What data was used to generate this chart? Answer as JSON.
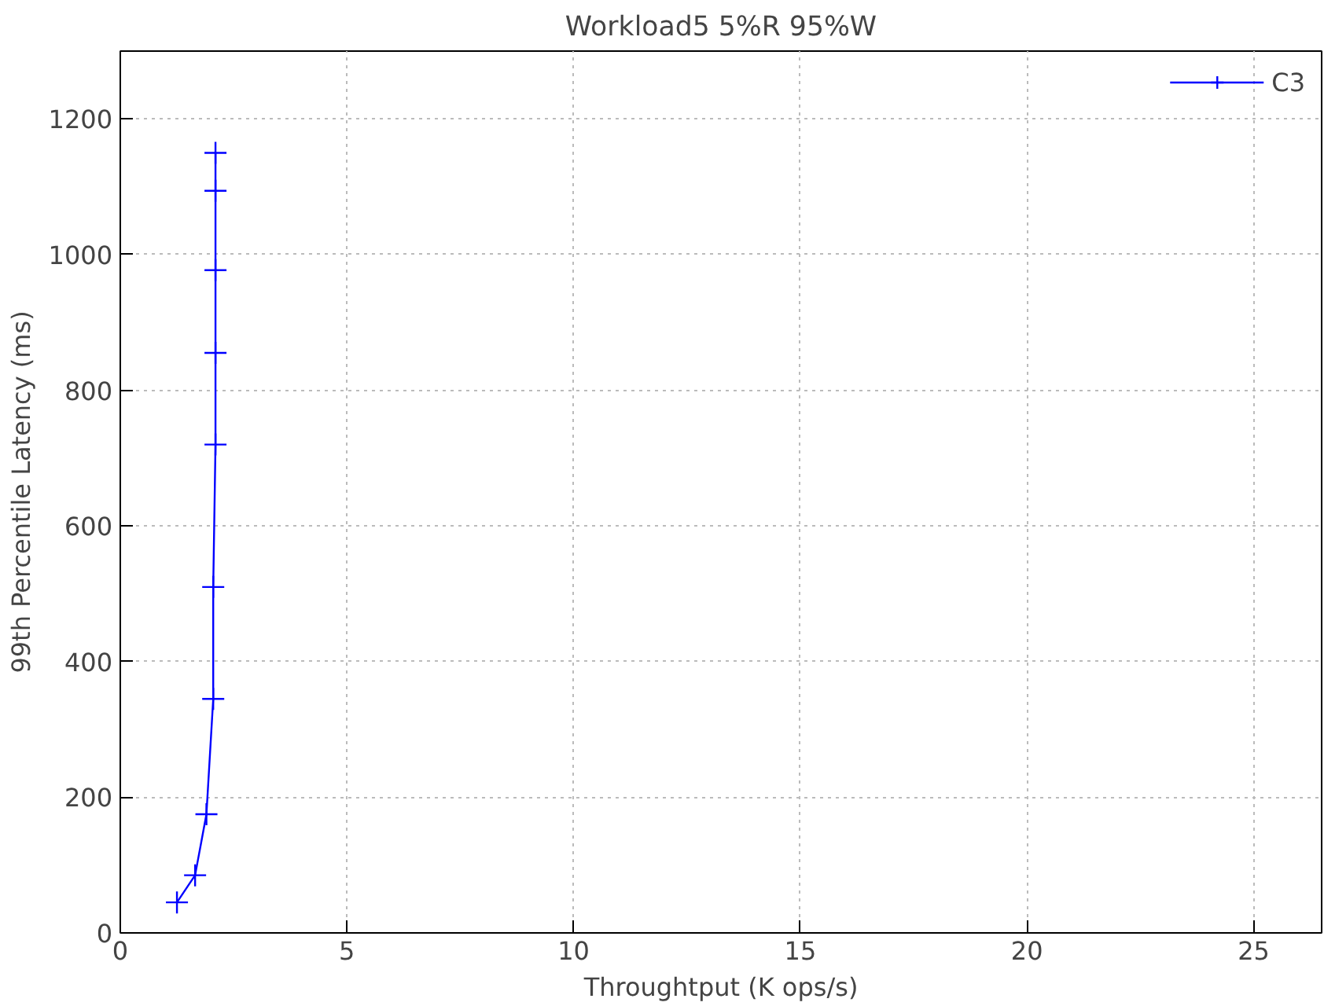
{
  "chart_data": {
    "type": "line",
    "title": "Workload5 5%R 95%W",
    "xlabel": "Throughtput (K ops/s)",
    "ylabel": "99th Percentile Latency (ms)",
    "x": [
      1.25,
      1.65,
      1.9,
      2.05,
      2.05,
      2.1,
      2.1,
      2.1,
      2.1,
      2.1
    ],
    "series": [
      {
        "name": "C3",
        "color": "#0000ff",
        "values": [
          45,
          85,
          175,
          345,
          510,
          720,
          855,
          977,
          1094,
          1150
        ]
      }
    ],
    "xlim": [
      0,
      26.5
    ],
    "ylim": [
      0,
      1300
    ],
    "xticks": [
      0,
      5,
      10,
      15,
      20,
      25
    ],
    "yticks": [
      0,
      200,
      400,
      600,
      800,
      1000,
      1200
    ],
    "grid": true,
    "legend": "top right",
    "marker": "cross",
    "line_style": "solid"
  }
}
